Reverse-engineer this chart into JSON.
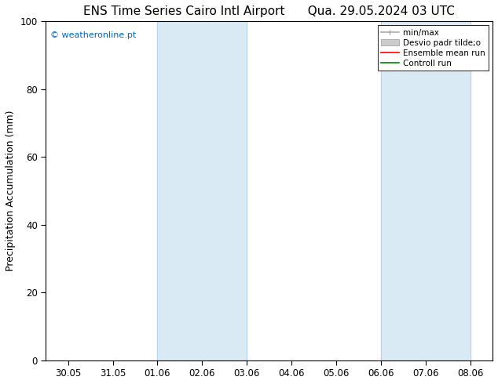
{
  "title_left": "ENS Time Series Cairo Intl Airport",
  "title_right": "Qua. 29.05.2024 03 UTC",
  "ylabel": "Precipitation Accumulation (mm)",
  "watermark": "© weatheronline.pt",
  "watermark_color": "#0066cc",
  "ylim": [
    0,
    100
  ],
  "yticks": [
    0,
    20,
    40,
    60,
    80,
    100
  ],
  "xtick_labels": [
    "30.05",
    "31.05",
    "01.06",
    "02.06",
    "03.06",
    "04.06",
    "05.06",
    "06.06",
    "07.06",
    "08.06"
  ],
  "shade_regions": [
    {
      "xstart": 2,
      "xend": 4,
      "color": "#daeaf5"
    },
    {
      "xstart": 7,
      "xend": 9,
      "color": "#daeaf5"
    }
  ],
  "shade_border_color": "#b8d4e8",
  "legend_entries": [
    {
      "label": "min/max",
      "color": "#aaaaaa",
      "lw": 1.2,
      "type": "line_with_caps"
    },
    {
      "label": "Desvio padr tilde;o",
      "color": "#cccccc",
      "lw": 6,
      "type": "band"
    },
    {
      "label": "Ensemble mean run",
      "color": "#ff0000",
      "lw": 1.2,
      "type": "line"
    },
    {
      "label": "Controll run",
      "color": "#008000",
      "lw": 1.2,
      "type": "line"
    }
  ],
  "bg_color": "#ffffff",
  "plot_bg_color": "#ffffff",
  "title_fontsize": 11,
  "label_fontsize": 9,
  "tick_fontsize": 8.5,
  "watermark_fontsize": 8
}
